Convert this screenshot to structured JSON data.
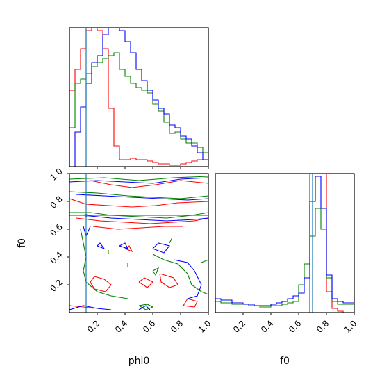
{
  "chart_data": {
    "type": "corner",
    "parameters": [
      "phi0",
      "f0"
    ],
    "x_label_phi0": "phi0",
    "x_label_f0": "f0",
    "y_label_f0": "f0",
    "x_ticks": [
      "0.2",
      "0.4",
      "0.6",
      "0.8",
      "1.0"
    ],
    "y_ticks": [
      "0.2",
      "0.4",
      "0.6",
      "0.8",
      "1.0"
    ],
    "xlim": [
      0,
      1
    ],
    "ylim": [
      0,
      1
    ],
    "truth": {
      "phi0": 0.12,
      "f0": 0.7
    },
    "series_colors": {
      "red": "#ff0000",
      "blue": "#0000ff",
      "green": "#008000"
    },
    "truth_color": "#1f77b4",
    "hist_phi0": {
      "bin_edges": [
        0,
        0.04,
        0.08,
        0.12,
        0.16,
        0.2,
        0.24,
        0.28,
        0.32,
        0.36,
        0.4,
        0.44,
        0.48,
        0.52,
        0.56,
        0.6,
        0.64,
        0.68,
        0.72,
        0.76,
        0.8,
        0.84,
        0.88,
        0.92,
        0.96,
        1.0
      ],
      "red": [
        0.55,
        0.7,
        0.85,
        0.98,
        1.0,
        0.98,
        0.85,
        0.42,
        0.15,
        0.05,
        0.05,
        0.06,
        0.05,
        0.05,
        0.04,
        0.03,
        0.02,
        0.02,
        0.01,
        0.01,
        0.02,
        0.03,
        0.04,
        0.05,
        0.05
      ],
      "blue": [
        0.0,
        0.25,
        0.43,
        0.6,
        0.75,
        0.8,
        0.95,
        1.0,
        1.0,
        0.98,
        0.9,
        0.82,
        0.7,
        0.62,
        0.55,
        0.48,
        0.42,
        0.38,
        0.3,
        0.28,
        0.22,
        0.2,
        0.15,
        0.1,
        0.05
      ],
      "green": [
        0.28,
        0.6,
        0.63,
        0.67,
        0.72,
        0.75,
        0.78,
        0.8,
        0.82,
        0.7,
        0.65,
        0.6,
        0.57,
        0.55,
        0.53,
        0.45,
        0.4,
        0.32,
        0.24,
        0.25,
        0.2,
        0.17,
        0.17,
        0.14,
        0.1
      ]
    },
    "hist_f0": {
      "bin_edges": [
        0,
        0.04,
        0.08,
        0.12,
        0.16,
        0.2,
        0.24,
        0.28,
        0.32,
        0.36,
        0.4,
        0.44,
        0.48,
        0.52,
        0.56,
        0.6,
        0.64,
        0.68,
        0.72,
        0.76,
        0.8,
        0.84,
        0.88,
        0.92,
        0.96,
        1.0
      ],
      "red": [
        0.0,
        0.0,
        0.0,
        0.0,
        0.0,
        0.0,
        0.0,
        0.0,
        0.0,
        0.0,
        0.0,
        0.0,
        0.0,
        0.0,
        0.0,
        0.0,
        0.0,
        1.0,
        1.0,
        1.0,
        0.15,
        0.03,
        0.01,
        0.0,
        0.0
      ],
      "blue": [
        0.1,
        0.09,
        0.09,
        0.07,
        0.07,
        0.06,
        0.06,
        0.05,
        0.05,
        0.05,
        0.06,
        0.07,
        0.08,
        0.1,
        0.12,
        0.14,
        0.25,
        0.8,
        0.98,
        0.75,
        0.27,
        0.1,
        0.08,
        0.07,
        0.07
      ],
      "green": [
        0.08,
        0.07,
        0.07,
        0.06,
        0.06,
        0.06,
        0.05,
        0.05,
        0.04,
        0.04,
        0.05,
        0.05,
        0.06,
        0.07,
        0.08,
        0.2,
        0.35,
        0.55,
        0.75,
        0.6,
        0.25,
        0.08,
        0.06,
        0.06,
        0.06
      ]
    },
    "contours_phi0_f0": {
      "red": [
        [
          [
            0.15,
            0.95
          ],
          [
            0.3,
            0.92
          ],
          [
            0.45,
            0.9
          ],
          [
            0.62,
            0.92
          ],
          [
            0.8,
            0.95
          ],
          [
            1.0,
            0.93
          ]
        ],
        [
          [
            0.0,
            0.82
          ],
          [
            0.12,
            0.78
          ],
          [
            0.28,
            0.77
          ],
          [
            0.45,
            0.76
          ],
          [
            0.62,
            0.77
          ],
          [
            0.78,
            0.79
          ],
          [
            1.0,
            0.8
          ]
        ],
        [
          [
            0.05,
            0.68
          ],
          [
            0.22,
            0.66
          ],
          [
            0.4,
            0.65
          ],
          [
            0.58,
            0.64
          ],
          [
            0.75,
            0.65
          ],
          [
            0.9,
            0.66
          ],
          [
            1.0,
            0.68
          ]
        ],
        [
          [
            0.17,
            0.62
          ],
          [
            0.35,
            0.6
          ],
          [
            0.52,
            0.61
          ],
          [
            0.68,
            0.62
          ],
          [
            0.82,
            0.62
          ]
        ],
        [
          [
            0.18,
            0.26
          ],
          [
            0.25,
            0.24
          ],
          [
            0.3,
            0.2
          ],
          [
            0.26,
            0.15
          ],
          [
            0.18,
            0.17
          ],
          [
            0.15,
            0.22
          ],
          [
            0.18,
            0.26
          ]
        ],
        [
          [
            0.5,
            0.22
          ],
          [
            0.56,
            0.18
          ],
          [
            0.6,
            0.22
          ],
          [
            0.54,
            0.25
          ],
          [
            0.5,
            0.22
          ]
        ],
        [
          [
            0.65,
            0.28
          ],
          [
            0.75,
            0.25
          ],
          [
            0.78,
            0.2
          ],
          [
            0.72,
            0.18
          ],
          [
            0.66,
            0.22
          ],
          [
            0.65,
            0.28
          ]
        ],
        [
          [
            0.82,
            0.05
          ],
          [
            0.9,
            0.04
          ],
          [
            0.92,
            0.08
          ],
          [
            0.85,
            0.1
          ],
          [
            0.82,
            0.05
          ]
        ],
        [
          [
            0.4,
            0.46
          ],
          [
            0.45,
            0.44
          ],
          [
            0.43,
            0.48
          ],
          [
            0.4,
            0.46
          ]
        ],
        [
          [
            0.0,
            0.05
          ],
          [
            0.1,
            0.04
          ],
          [
            0.18,
            0.03
          ]
        ]
      ],
      "blue": [
        [
          [
            0.0,
            0.94
          ],
          [
            0.2,
            0.95
          ],
          [
            0.4,
            0.94
          ],
          [
            0.6,
            0.93
          ],
          [
            0.8,
            0.96
          ],
          [
            1.0,
            0.97
          ]
        ],
        [
          [
            0.05,
            0.85
          ],
          [
            0.25,
            0.84
          ],
          [
            0.45,
            0.83
          ],
          [
            0.65,
            0.82
          ],
          [
            0.85,
            0.81
          ],
          [
            1.0,
            0.82
          ]
        ],
        [
          [
            0.1,
            0.7
          ],
          [
            0.3,
            0.68
          ],
          [
            0.5,
            0.67
          ],
          [
            0.7,
            0.66
          ],
          [
            0.9,
            0.67
          ],
          [
            1.0,
            0.68
          ]
        ],
        [
          [
            0.1,
            0.62
          ],
          [
            0.12,
            0.55
          ],
          [
            0.15,
            0.62
          ]
        ],
        [
          [
            0.2,
            0.48
          ],
          [
            0.25,
            0.46
          ],
          [
            0.22,
            0.5
          ],
          [
            0.2,
            0.48
          ]
        ],
        [
          [
            0.36,
            0.48
          ],
          [
            0.42,
            0.46
          ],
          [
            0.4,
            0.5
          ],
          [
            0.36,
            0.48
          ]
        ],
        [
          [
            0.6,
            0.46
          ],
          [
            0.68,
            0.43
          ],
          [
            0.72,
            0.48
          ],
          [
            0.64,
            0.5
          ],
          [
            0.6,
            0.46
          ]
        ],
        [
          [
            0.75,
            0.38
          ],
          [
            0.85,
            0.36
          ],
          [
            0.9,
            0.3
          ],
          [
            0.95,
            0.2
          ],
          [
            0.92,
            0.12
          ],
          [
            0.85,
            0.1
          ]
        ],
        [
          [
            0.0,
            0.02
          ],
          [
            0.1,
            0.05
          ],
          [
            0.2,
            0.03
          ],
          [
            0.3,
            0.02
          ]
        ],
        [
          [
            0.5,
            0.02
          ],
          [
            0.55,
            0.05
          ],
          [
            0.58,
            0.02
          ]
        ]
      ],
      "green": [
        [
          [
            0.0,
            0.96
          ],
          [
            0.25,
            0.97
          ],
          [
            0.5,
            0.95
          ],
          [
            0.75,
            0.97
          ],
          [
            1.0,
            0.98
          ]
        ],
        [
          [
            0.0,
            0.87
          ],
          [
            0.2,
            0.86
          ],
          [
            0.42,
            0.84
          ],
          [
            0.6,
            0.83
          ],
          [
            0.8,
            0.82
          ],
          [
            1.0,
            0.84
          ]
        ],
        [
          [
            0.0,
            0.72
          ],
          [
            0.15,
            0.72
          ],
          [
            0.3,
            0.7
          ],
          [
            0.5,
            0.69
          ],
          [
            0.7,
            0.68
          ],
          [
            0.88,
            0.7
          ],
          [
            1.0,
            0.72
          ]
        ],
        [
          [
            0.08,
            0.6
          ],
          [
            0.1,
            0.5
          ],
          [
            0.12,
            0.4
          ],
          [
            0.1,
            0.3
          ],
          [
            0.12,
            0.22
          ],
          [
            0.2,
            0.15
          ],
          [
            0.3,
            0.12
          ],
          [
            0.42,
            0.1
          ]
        ],
        [
          [
            0.6,
            0.42
          ],
          [
            0.68,
            0.38
          ],
          [
            0.78,
            0.35
          ],
          [
            0.85,
            0.28
          ],
          [
            0.88,
            0.2
          ],
          [
            0.95,
            0.15
          ],
          [
            1.0,
            0.13
          ]
        ],
        [
          [
            0.72,
            0.5
          ],
          [
            0.74,
            0.54
          ]
        ],
        [
          [
            0.95,
            0.36
          ],
          [
            1.0,
            0.38
          ]
        ],
        [
          [
            0.42,
            0.33
          ],
          [
            0.42,
            0.36
          ]
        ],
        [
          [
            0.28,
            0.42
          ],
          [
            0.28,
            0.45
          ]
        ],
        [
          [
            0.5,
            0.05
          ],
          [
            0.56,
            0.06
          ],
          [
            0.6,
            0.04
          ],
          [
            0.55,
            0.02
          ],
          [
            0.5,
            0.05
          ]
        ],
        [
          [
            0.6,
            0.3
          ],
          [
            0.64,
            0.32
          ],
          [
            0.62,
            0.27
          ],
          [
            0.6,
            0.3
          ]
        ]
      ]
    }
  }
}
